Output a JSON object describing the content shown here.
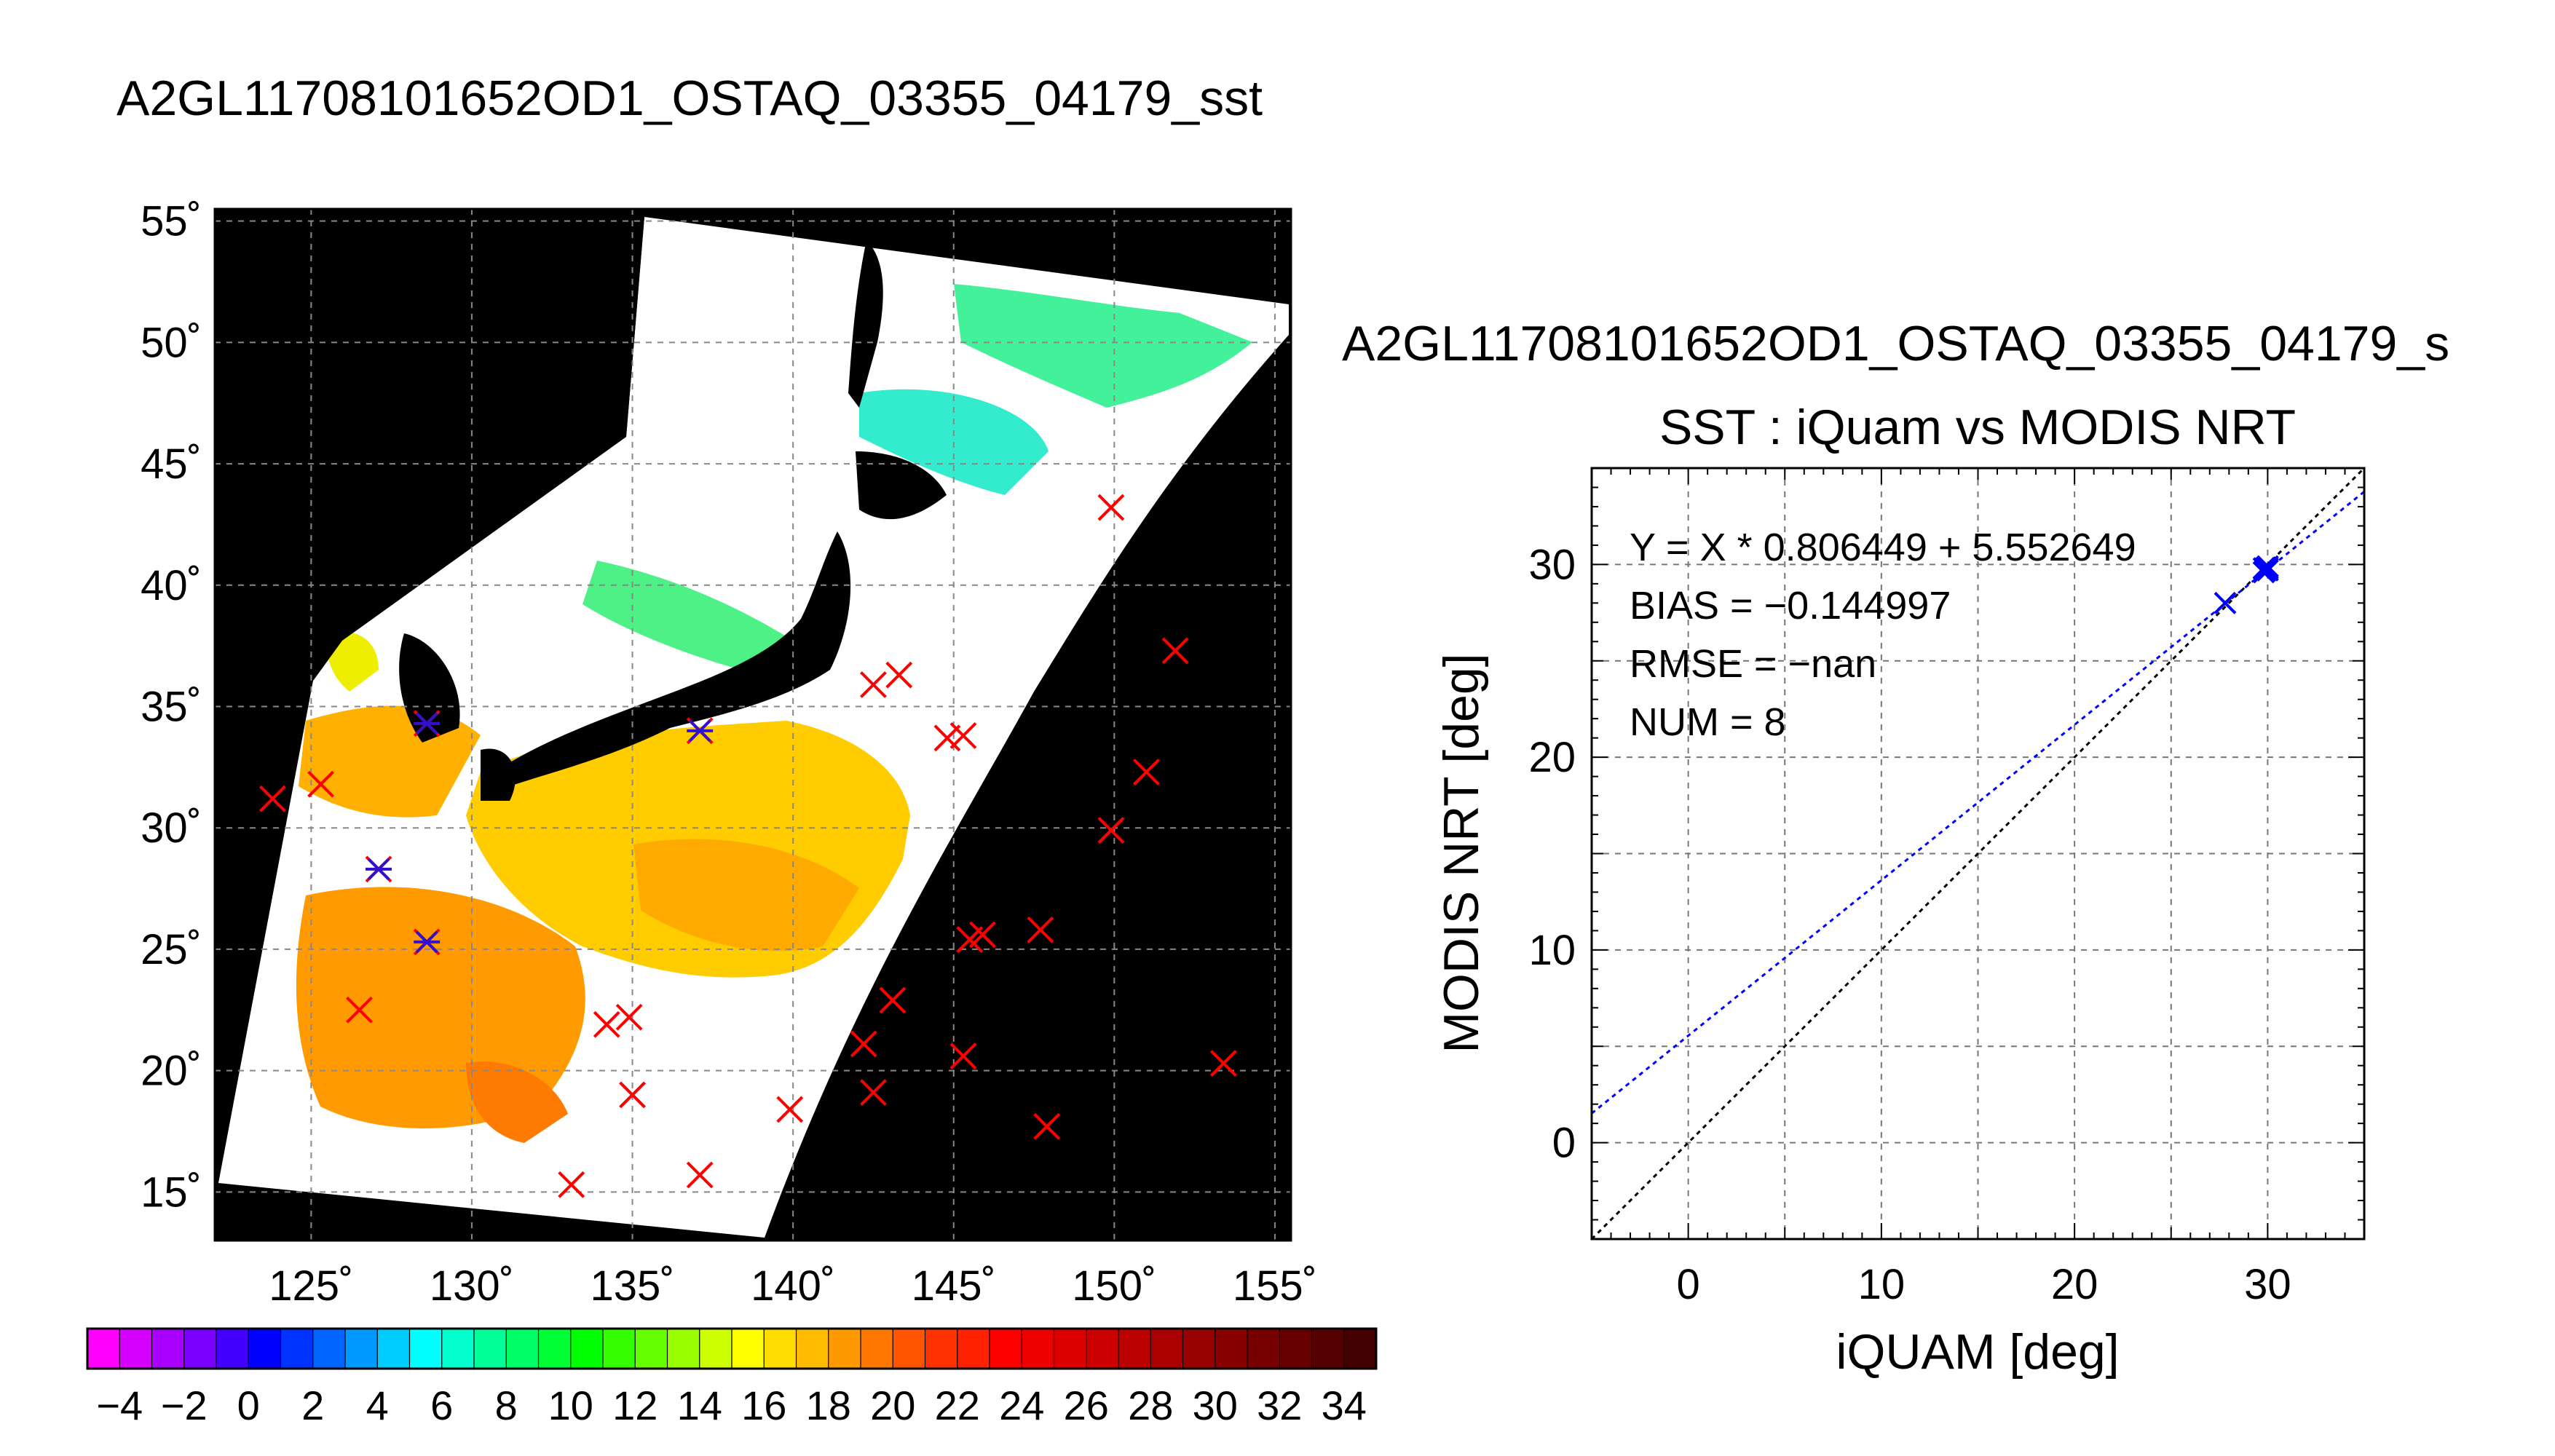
{
  "chart_data": [
    {
      "type": "heatmap",
      "title": "A2GL11708101652OD1_OSTAQ_03355_04179_sst",
      "lon_ticks": [
        "125˚",
        "130˚",
        "135˚",
        "140˚",
        "145˚",
        "150˚",
        "155˚"
      ],
      "lon_values": [
        125,
        130,
        135,
        140,
        145,
        150,
        155
      ],
      "lat_ticks": [
        "15˚",
        "20˚",
        "25˚",
        "30˚",
        "35˚",
        "40˚",
        "45˚",
        "50˚",
        "55˚"
      ],
      "lat_values": [
        15,
        20,
        25,
        30,
        35,
        40,
        45,
        50,
        55
      ],
      "xlim": [
        122,
        155.5
      ],
      "ylim": [
        13,
        55.5
      ],
      "grid": true,
      "colorbar": {
        "ticks": [
          "−4",
          "−2",
          "0",
          "2",
          "4",
          "6",
          "8",
          "10",
          "12",
          "14",
          "16",
          "18",
          "20",
          "22",
          "24",
          "26",
          "28",
          "30",
          "32",
          "34"
        ],
        "range": [
          -5,
          35
        ],
        "colors": [
          "#ff00ff",
          "#d600ff",
          "#aa00ff",
          "#7a00ff",
          "#4400ff",
          "#0000ff",
          "#0033ff",
          "#0066ff",
          "#0099ff",
          "#00ccff",
          "#00ffff",
          "#00ffcc",
          "#00ff99",
          "#00ff66",
          "#00ff33",
          "#00ff00",
          "#33ff00",
          "#66ff00",
          "#99ff00",
          "#ccff00",
          "#ffff00",
          "#ffdd00",
          "#ffbb00",
          "#ff9900",
          "#ff7700",
          "#ff5500",
          "#ff3300",
          "#ff2200",
          "#ff0000",
          "#ee0000",
          "#dd0000",
          "#cc0000",
          "#bb0000",
          "#aa0000",
          "#990000",
          "#880000",
          "#770000",
          "#660000",
          "#550000",
          "#440000"
        ]
      },
      "markers": {
        "symbol": "x",
        "color": "#ff0000",
        "points": [
          [
            123.8,
            31.2
          ],
          [
            125.3,
            31.8
          ],
          [
            126.5,
            22.5
          ],
          [
            127.1,
            28.3
          ],
          [
            128.6,
            34.3
          ],
          [
            128.6,
            25.3
          ],
          [
            134.2,
            21.9
          ],
          [
            134.9,
            22.2
          ],
          [
            135.0,
            19.0
          ],
          [
            133.1,
            15.3
          ],
          [
            137.1,
            15.7
          ],
          [
            137.1,
            34.0
          ],
          [
            139.9,
            18.4
          ],
          [
            142.2,
            21.1
          ],
          [
            142.5,
            19.1
          ],
          [
            142.5,
            35.9
          ],
          [
            143.3,
            36.3
          ],
          [
            143.1,
            22.9
          ],
          [
            144.8,
            33.7
          ],
          [
            145.3,
            33.8
          ],
          [
            145.3,
            20.6
          ],
          [
            145.5,
            25.4
          ],
          [
            145.9,
            25.6
          ],
          [
            147.7,
            25.8
          ],
          [
            147.9,
            17.7
          ],
          [
            149.9,
            29.9
          ],
          [
            149.9,
            43.2
          ],
          [
            151.0,
            32.3
          ],
          [
            151.9,
            37.3
          ],
          [
            153.4,
            20.3
          ]
        ]
      },
      "overlay_markers": {
        "symbol": "asterisk",
        "color": "#3311cc",
        "points": [
          [
            127.1,
            28.3
          ],
          [
            128.6,
            34.3
          ],
          [
            128.6,
            25.3
          ],
          [
            137.1,
            34.0
          ]
        ]
      }
    },
    {
      "type": "scatter",
      "title": "A2GL11708101652OD1_OSTAQ_03355_04179_s",
      "subtitle": "SST : iQuam vs MODIS NRT",
      "xlabel": "iQUAM [deg]",
      "ylabel": "MODIS NRT [deg]",
      "xlim": [
        -5,
        35
      ],
      "ylim": [
        -5,
        35
      ],
      "xticks": [
        0,
        10,
        20,
        30
      ],
      "yticks": [
        0,
        10,
        20,
        30
      ],
      "grid": true,
      "annotations": [
        "Y = X * 0.806449 + 5.552649",
        "BIAS = −0.144997",
        "RMSE = −nan",
        "NUM = 8"
      ],
      "fit": {
        "slope": 0.806449,
        "intercept": 5.552649,
        "color": "#0000ff"
      },
      "identity_line": {
        "color": "#000000"
      },
      "series": [
        {
          "color": "#0000ff",
          "points": [
            [
              27.8,
              28.0
            ],
            [
              29.8,
              29.6
            ],
            [
              29.9,
              29.8
            ],
            [
              30.0,
              29.7
            ],
            [
              30.0,
              29.8
            ],
            [
              29.9,
              29.7
            ],
            [
              30.0,
              29.9
            ],
            [
              29.8,
              29.8
            ]
          ]
        }
      ]
    }
  ]
}
